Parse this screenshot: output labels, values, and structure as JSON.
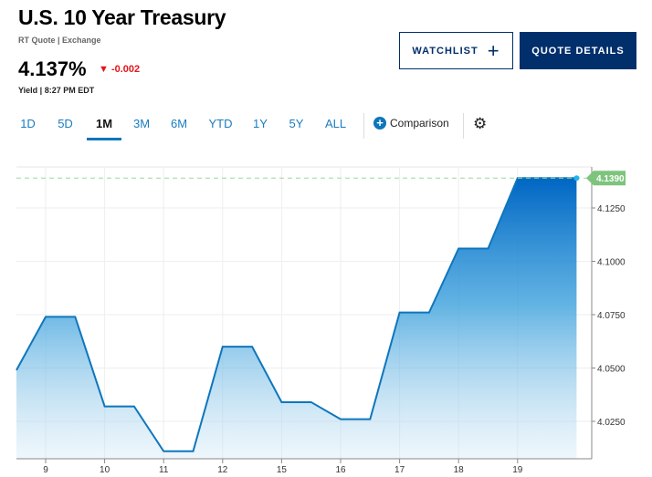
{
  "header": {
    "title": "U.S. 10 Year Treasury",
    "source": "RT Quote | Exchange",
    "price": "4.137%",
    "change": "-0.002",
    "change_color": "#e4151b",
    "yield_time": "Yield | 8:27 PM EDT"
  },
  "buttons": {
    "watchlist": "WATCHLIST",
    "watchlist_icon": "+",
    "quote_details": "QUOTE DETAILS"
  },
  "tabs": [
    "1D",
    "5D",
    "1M",
    "3M",
    "6M",
    "YTD",
    "1Y",
    "5Y",
    "ALL"
  ],
  "active_tab": "1M",
  "comparison": {
    "icon": "+",
    "label": "Comparison"
  },
  "chart_data": {
    "type": "area",
    "title": "",
    "xlabel": "",
    "ylabel": "",
    "x_ticks": [
      "9",
      "10",
      "11",
      "12",
      "15",
      "16",
      "17",
      "18",
      "19"
    ],
    "x_tick_positions": [
      0,
      1,
      2,
      3,
      4,
      5,
      6,
      7,
      8
    ],
    "x_range": [
      -0.5,
      9.2
    ],
    "points": [
      [
        -0.5,
        4.049
      ],
      [
        0,
        4.074
      ],
      [
        0.5,
        4.074
      ],
      [
        1,
        4.032
      ],
      [
        1.5,
        4.032
      ],
      [
        2,
        4.011
      ],
      [
        2.5,
        4.011
      ],
      [
        3,
        4.06
      ],
      [
        3.5,
        4.06
      ],
      [
        4,
        4.034
      ],
      [
        4.5,
        4.034
      ],
      [
        5,
        4.026
      ],
      [
        5.5,
        4.026
      ],
      [
        6,
        4.076
      ],
      [
        6.5,
        4.076
      ],
      [
        7,
        4.106
      ],
      [
        7.5,
        4.106
      ],
      [
        8,
        4.139
      ],
      [
        9,
        4.139
      ]
    ],
    "y_ticks": [
      "4.0250",
      "4.0500",
      "4.0750",
      "4.1000",
      "4.1250"
    ],
    "y_tick_values": [
      4.025,
      4.05,
      4.075,
      4.1,
      4.125
    ],
    "ylim": [
      4.004,
      4.1435
    ],
    "last_value_label": "4.1390",
    "last_value": 4.139,
    "line_color": "#0e76bc",
    "last_label_color": "#7dc47d"
  }
}
